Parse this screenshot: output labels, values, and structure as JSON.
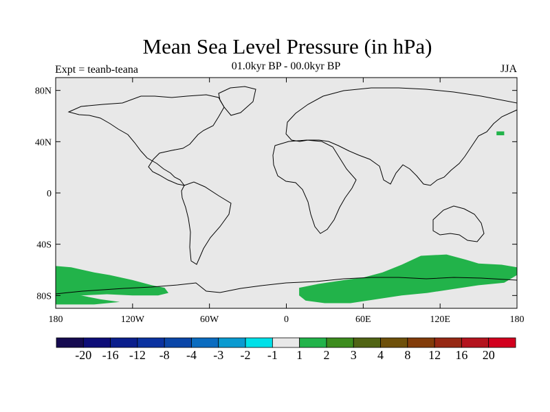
{
  "title": "Mean Sea Level Pressure (in hPa)",
  "subtitle": "01.0kyr BP - 00.0kyr BP",
  "left_label": "Expt = teanb-teana",
  "right_label": "JJA",
  "colors": {
    "background_field": "#e8e8e8",
    "positive_anomaly": "#22b34a",
    "coastline": "#000000"
  },
  "chart_data": {
    "type": "heatmap",
    "projection": "cylindrical-equidistant",
    "lon_range": [
      -180,
      180
    ],
    "lat_range": [
      -90,
      90
    ],
    "y_ticks": [
      {
        "value": 80,
        "label": "80N"
      },
      {
        "value": 40,
        "label": "40N"
      },
      {
        "value": 0,
        "label": "0"
      },
      {
        "value": -40,
        "label": "40S"
      },
      {
        "value": -80,
        "label": "80S"
      }
    ],
    "x_ticks": [
      {
        "value": -180,
        "label": "180"
      },
      {
        "value": -120,
        "label": "120W"
      },
      {
        "value": -60,
        "label": "60W"
      },
      {
        "value": 0,
        "label": "0"
      },
      {
        "value": 60,
        "label": "60E"
      },
      {
        "value": 120,
        "label": "120E"
      },
      {
        "value": 180,
        "label": "180"
      }
    ],
    "colorbar": {
      "colors": [
        "#150a50",
        "#0d0d78",
        "#0a1e8c",
        "#0a32a0",
        "#0a46a8",
        "#0a6cc0",
        "#0a9ad0",
        "#00e0e8",
        "#e8e8e8",
        "#22b34a",
        "#3c8c1e",
        "#506414",
        "#6e500a",
        "#823c0a",
        "#962814",
        "#b4141e",
        "#d2001e"
      ],
      "labels": [
        "-20",
        "-16",
        "-12",
        "-8",
        "-4",
        "-3",
        "-2",
        "-1",
        "1",
        "2",
        "3",
        "4",
        "8",
        "12",
        "16",
        "20"
      ]
    },
    "positive_regions": [
      {
        "name": "south-pacific-high-lat",
        "range": "1 to 2",
        "polygon": [
          [
            -180,
            -57
          ],
          [
            -168,
            -58
          ],
          [
            -150,
            -62
          ],
          [
            -138,
            -64
          ],
          [
            -120,
            -68
          ],
          [
            -105,
            -72
          ],
          [
            -95,
            -74
          ],
          [
            -92,
            -78
          ],
          [
            -100,
            -80
          ],
          [
            -120,
            -80
          ],
          [
            -140,
            -79
          ],
          [
            -160,
            -80
          ],
          [
            -180,
            -79
          ]
        ]
      },
      {
        "name": "antarctic-indian-sector",
        "range": "1 to 2",
        "polygon": [
          [
            10,
            -74
          ],
          [
            25,
            -71
          ],
          [
            45,
            -68
          ],
          [
            60,
            -66
          ],
          [
            75,
            -62
          ],
          [
            90,
            -56
          ],
          [
            105,
            -49
          ],
          [
            125,
            -48
          ],
          [
            140,
            -52
          ],
          [
            150,
            -55
          ],
          [
            168,
            -56
          ],
          [
            180,
            -58
          ],
          [
            180,
            -64
          ],
          [
            170,
            -70
          ],
          [
            150,
            -72
          ],
          [
            130,
            -75
          ],
          [
            110,
            -78
          ],
          [
            90,
            -80
          ],
          [
            70,
            -83
          ],
          [
            50,
            -86
          ],
          [
            30,
            -86
          ],
          [
            15,
            -84
          ],
          [
            10,
            -80
          ]
        ]
      },
      {
        "name": "antarctic-ross-sector",
        "range": "1 to 2",
        "polygon": [
          [
            -180,
            -77
          ],
          [
            -165,
            -79
          ],
          [
            -145,
            -83
          ],
          [
            -130,
            -85
          ],
          [
            -150,
            -87
          ],
          [
            -180,
            -87
          ]
        ]
      },
      {
        "name": "north-pacific-patch",
        "range": "1 to 2",
        "polygon": [
          [
            164,
            45
          ],
          [
            170,
            45
          ],
          [
            170,
            48
          ],
          [
            164,
            48
          ]
        ]
      }
    ]
  }
}
